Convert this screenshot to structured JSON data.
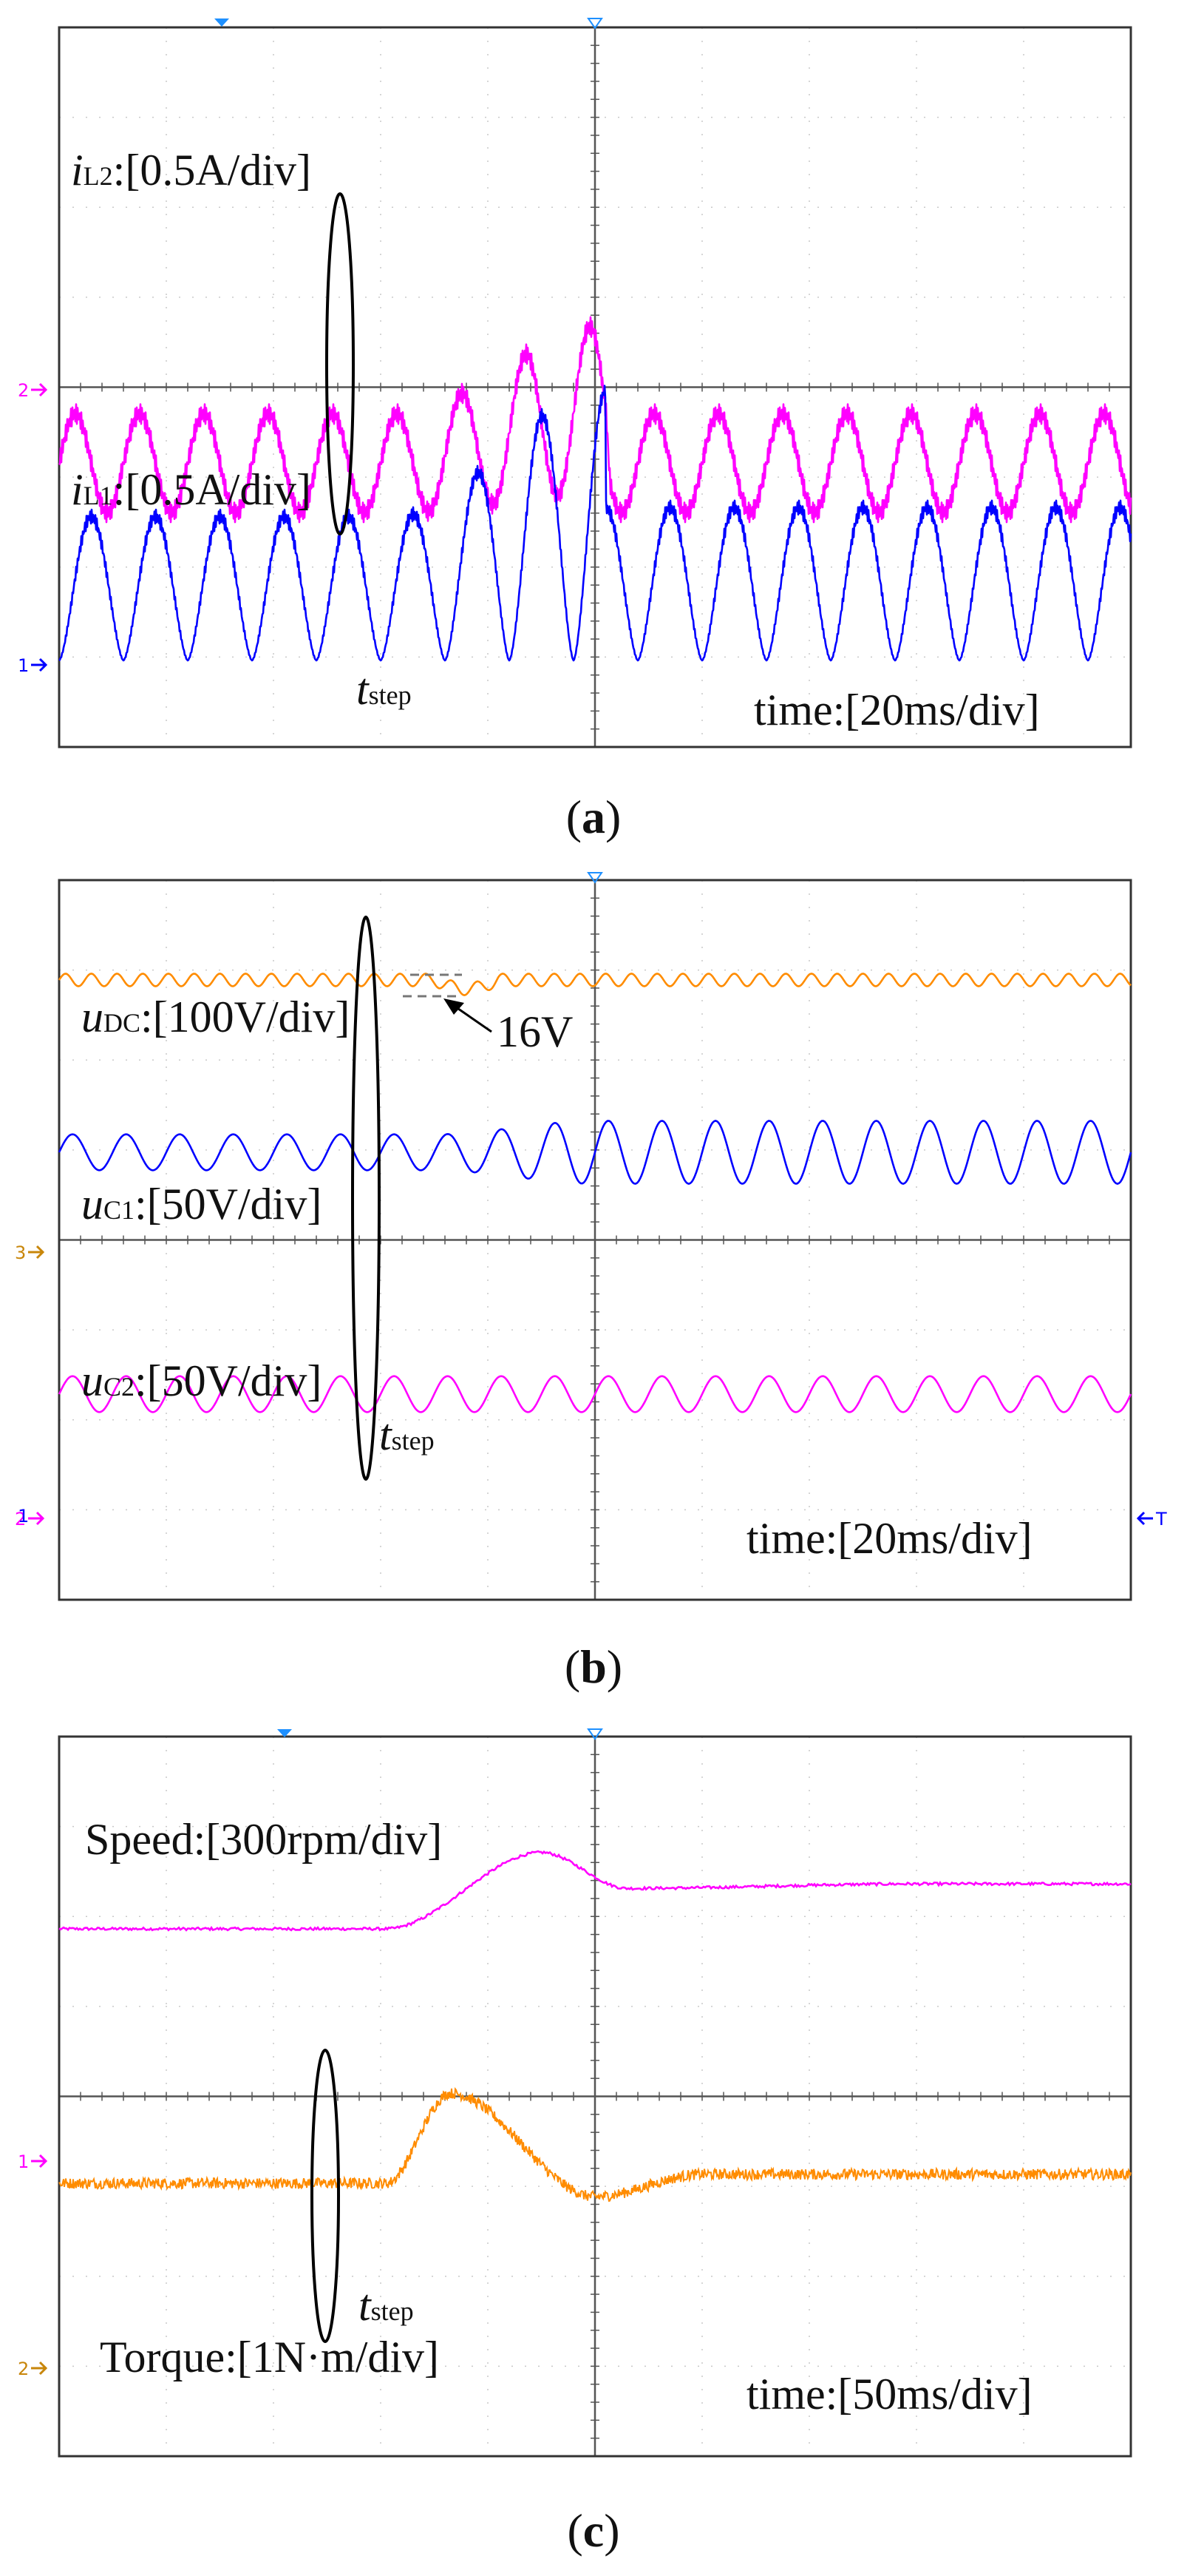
{
  "figures": [
    {
      "caption": {
        "pre": "(",
        "letter": "a",
        "post": ")"
      },
      "time_label": "time:[20ms/div]",
      "step_label": {
        "main": "t",
        "sub": "step"
      },
      "channel_markers": [
        "2",
        "1"
      ],
      "traces": [
        {
          "var": "i",
          "sub": "L2",
          "scale": ":[0.5A/div]",
          "color": "#ff00ff"
        },
        {
          "var": "i",
          "sub": "L1",
          "scale": ":[0.5A/div]",
          "color": "#0000ff"
        }
      ]
    },
    {
      "caption": {
        "pre": "(",
        "letter": "b",
        "post": ")"
      },
      "time_label": "time:[20ms/div]",
      "step_label": {
        "main": "t",
        "sub": "step"
      },
      "annotation": "16V",
      "channel_markers": [
        "3",
        "2",
        "1",
        "T"
      ],
      "traces": [
        {
          "var": "u",
          "sub": "DC",
          "scale": ":[100V/div]",
          "color": "#ff8c00"
        },
        {
          "var": "u",
          "sub": "C1",
          "scale": ":[50V/div]",
          "color": "#0000ff"
        },
        {
          "var": "u",
          "sub": "C2",
          "scale": ":[50V/div]",
          "color": "#ff00ff"
        }
      ]
    },
    {
      "caption": {
        "pre": "(",
        "letter": "c",
        "post": ")"
      },
      "time_label": "time:[50ms/div]",
      "step_label": {
        "main": "t",
        "sub": "step"
      },
      "channel_markers": [
        "1",
        "2"
      ],
      "traces": [
        {
          "label": "Speed:[300rpm/div]",
          "color": "#ff00ff"
        },
        {
          "label": "Torque:[1N·m/div]",
          "color": "#ff8c00"
        }
      ]
    }
  ],
  "chart_data": [
    {
      "type": "line",
      "title": "(a)",
      "xlabel": "time:[20ms/div]",
      "x_divisions": 10,
      "y_divisions": 8,
      "step_time_div": 3.15,
      "series": [
        {
          "name": "iL2",
          "scale": "0.5A/div",
          "color": "#ff00ff",
          "baseline_div": 1.65,
          "pre_step_amplitude_div": 0.55,
          "pre_step_peak_div": 2.6,
          "peak_div": 3.4,
          "post_peak_time_div": 5.1,
          "ripple_period_div": 0.6,
          "settled_amplitude_div": 0.6
        },
        {
          "name": "iL1",
          "scale": "0.5A/div",
          "color": "#0000ff",
          "baseline_div": 0.0,
          "pre_step_peak_div": 1.6,
          "peak_div": 3.0,
          "post_peak_time_div": 5.1,
          "ripple_period_div": 0.6,
          "settled_peak_div": 1.7
        }
      ]
    },
    {
      "type": "line",
      "title": "(b)",
      "xlabel": "time:[20ms/div]",
      "x_divisions": 10,
      "y_divisions": 8,
      "step_time_div": 3.5,
      "series": [
        {
          "name": "uDC",
          "scale": "100V/div",
          "color": "#ff8c00",
          "level_div": 3.65,
          "ripple_div": 0.07,
          "dip_V": 16,
          "ripple_period_div": 0.24
        },
        {
          "name": "uC1",
          "scale": "50V/div",
          "color": "#0000ff",
          "center_div": 2.1,
          "pre_step_amplitude_div": 0.2,
          "post_step_amplitude_div": 0.35,
          "ripple_period_div": 0.5
        },
        {
          "name": "uC2",
          "scale": "50V/div",
          "color": "#ff00ff",
          "center_div": 0.55,
          "amplitude_div": 0.2,
          "ripple_period_div": 0.5
        }
      ]
    },
    {
      "type": "line",
      "title": "(c)",
      "xlabel": "time:[50ms/div]",
      "x_divisions": 10,
      "y_divisions": 8,
      "step_time_div": 3.05,
      "series": [
        {
          "name": "Speed",
          "scale": "300rpm/div",
          "color": "#ff00ff",
          "initial_div": 1.1,
          "peak_div": 1.95,
          "peak_time_div": 4.5,
          "dip_div": 1.55,
          "dip_time_div": 5.3,
          "final_div": 1.6
        },
        {
          "name": "Torque",
          "scale": "1N·m/div",
          "color": "#ff8c00",
          "initial_div": 0.0,
          "peak_div": 1.0,
          "peak_time_div": 3.65,
          "dip_div": -0.15,
          "dip_time_div": 5.0,
          "final_div": 0.1,
          "noise_div": 0.12
        }
      ]
    }
  ]
}
